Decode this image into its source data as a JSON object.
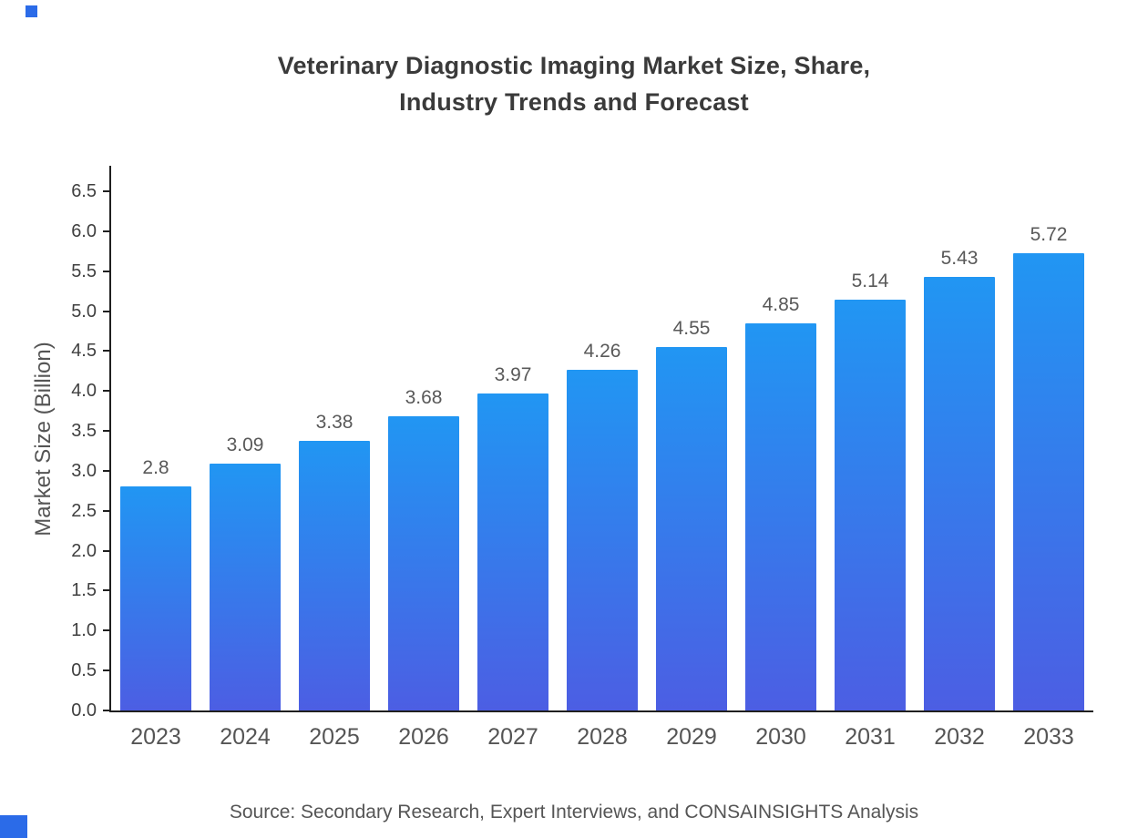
{
  "title": {
    "line1": "Veterinary Diagnostic Imaging Market Size, Share,",
    "line2": "Industry Trends and Forecast"
  },
  "chart_data": {
    "type": "bar",
    "title": "Veterinary Diagnostic Imaging Market Size, Share, Industry Trends and Forecast",
    "categories": [
      "2023",
      "2024",
      "2025",
      "2026",
      "2027",
      "2028",
      "2029",
      "2030",
      "2031",
      "2032",
      "2033"
    ],
    "values": [
      2.8,
      3.09,
      3.38,
      3.68,
      3.97,
      4.26,
      4.55,
      4.85,
      5.14,
      5.43,
      5.72
    ],
    "value_labels": [
      "2.8",
      "3.09",
      "3.38",
      "3.68",
      "3.97",
      "4.26",
      "4.55",
      "4.85",
      "5.14",
      "5.43",
      "5.72"
    ],
    "xlabel": "",
    "ylabel": "Market Size (Billion)",
    "ylim": [
      0,
      6.5
    ],
    "ytick_step": 0.5,
    "grid": false,
    "legend_position": "none"
  },
  "source_note": "Source: Secondary Research, Expert Interviews, and CONSAINSIGHTS Analysis",
  "colors": {
    "bar_gradient_top": "#2196f3",
    "bar_gradient_bottom": "#4c5ee3",
    "axis": "#1f1f1f",
    "title_text": "#3a3a3a",
    "tick_text": "#3f3f3f",
    "label_text": "#555555",
    "brand_blue": "#2b6be8"
  }
}
